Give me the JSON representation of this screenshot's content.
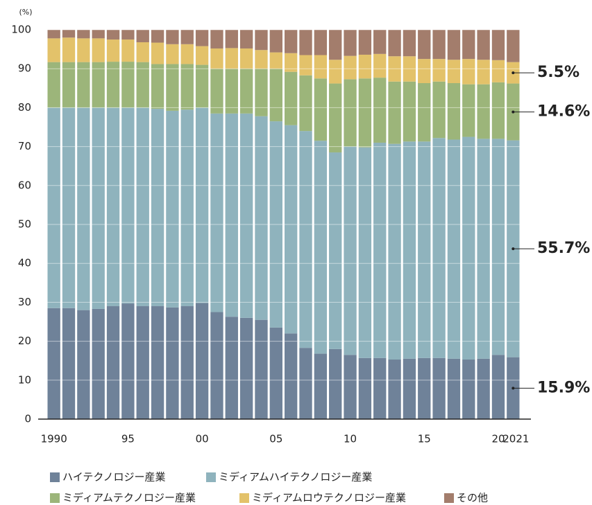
{
  "chart_data": {
    "type": "stacked_bar",
    "y_unit_label": "(%)",
    "categories": [
      "1990",
      null,
      null,
      null,
      null,
      "95",
      null,
      null,
      null,
      null,
      "00",
      null,
      null,
      null,
      null,
      "05",
      null,
      null,
      null,
      null,
      "10",
      null,
      null,
      null,
      null,
      "15",
      null,
      null,
      null,
      null,
      "20",
      "2021"
    ],
    "ylim": [
      0,
      100
    ],
    "yticks": [
      0,
      10,
      20,
      30,
      40,
      50,
      60,
      70,
      80,
      90,
      100
    ],
    "grid": true,
    "series": [
      {
        "name": "ハイテクノロジー産業",
        "color": "#6f8299",
        "end_label": "15.9%",
        "values": [
          28.5,
          28.5,
          28,
          28.3,
          29,
          29.7,
          29,
          29,
          28.7,
          29,
          29.8,
          27.5,
          26.3,
          26,
          25.5,
          23.5,
          22,
          18.3,
          16.8,
          18,
          16.5,
          15.7,
          15.7,
          15.3,
          15.5,
          15.7,
          15.7,
          15.5,
          15.3,
          15.5,
          16.5,
          15.9
        ]
      },
      {
        "name": "ミディアムハイテクノロジー産業",
        "color": "#8fb3bd",
        "end_label": "55.7%",
        "values": [
          51.5,
          51.5,
          52,
          51.7,
          51,
          50.3,
          51,
          50.7,
          50.5,
          50.5,
          50.2,
          51,
          52.2,
          52.5,
          52.3,
          53,
          53.5,
          55.7,
          54.7,
          50.5,
          53.5,
          54.1,
          55.3,
          55.4,
          55.8,
          55.6,
          56.5,
          56.3,
          57.2,
          56.5,
          55.5,
          55.7
        ]
      },
      {
        "name": "ミディアムテクノロジー産業",
        "color": "#9cb57a",
        "end_label": "14.6%",
        "values": [
          11.7,
          11.7,
          11.7,
          11.7,
          11.8,
          11.8,
          11.7,
          11.5,
          12,
          11.7,
          11,
          11.5,
          11.5,
          11.5,
          12.2,
          13.5,
          13.7,
          14.3,
          16,
          17.7,
          17.3,
          17.7,
          16.7,
          16,
          15.4,
          15,
          14.5,
          14.5,
          13.5,
          14,
          14.5,
          14.6
        ]
      },
      {
        "name": "ミディアムロウテクノロジー産業",
        "color": "#e3c26a",
        "end_label": "5.5%",
        "values": [
          6.1,
          6.3,
          6.1,
          6.1,
          5.7,
          5.7,
          5.1,
          5.5,
          5.1,
          5.1,
          4.8,
          5.2,
          5.3,
          5.2,
          4.8,
          4.2,
          4.8,
          5.2,
          6,
          6.1,
          6,
          6.1,
          6.1,
          6.5,
          6.5,
          6.2,
          5.8,
          6,
          6.5,
          6.3,
          5.7,
          5.5
        ]
      },
      {
        "name": "その他",
        "color": "#a37d6c",
        "values": [
          2.2,
          2,
          2.2,
          2.2,
          2.5,
          2.5,
          3.2,
          3.3,
          3.7,
          3.7,
          4.2,
          4.8,
          4.7,
          4.8,
          5.2,
          5.8,
          6,
          6.5,
          6.5,
          7.7,
          6.7,
          6.4,
          6.2,
          6.8,
          6.8,
          7.5,
          7.5,
          7.7,
          7.5,
          7.7,
          7.8,
          8.3
        ]
      }
    ]
  }
}
